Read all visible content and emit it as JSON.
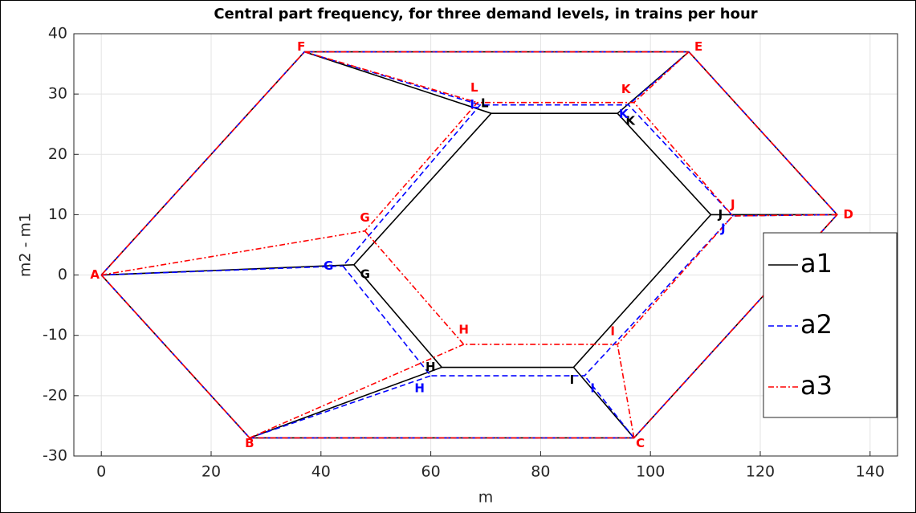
{
  "chart_data": {
    "type": "network",
    "title": "Central part frequency, for three demand levels, in trains per hour",
    "x_label": "m",
    "y_label": "m2 - m1",
    "xlim": [
      -5,
      145
    ],
    "ylim": [
      -30,
      40
    ],
    "xticks": [
      0,
      20,
      40,
      60,
      80,
      100,
      120,
      140
    ],
    "yticks": [
      -30,
      -20,
      -10,
      0,
      10,
      20,
      30,
      40
    ],
    "grid": true,
    "legend": "right",
    "terminals": {
      "names": [
        "A",
        "B",
        "C",
        "D",
        "E",
        "F"
      ],
      "x": [
        0,
        27,
        97,
        134,
        107,
        37
      ],
      "values": [
        0,
        -27,
        -27,
        10,
        37,
        37
      ]
    },
    "series": [
      {
        "name": "a1",
        "color": "#000000",
        "line_style": "-",
        "nodes": [
          "G",
          "H",
          "I",
          "J",
          "K",
          "L"
        ],
        "x": [
          46,
          62,
          86,
          111,
          94,
          71
        ],
        "values": [
          1.7,
          -15.3,
          -15.3,
          10,
          26.8,
          26.8
        ]
      },
      {
        "name": "a2",
        "color": "#0000ff",
        "line_style": "--",
        "nodes": [
          "G",
          "H",
          "I",
          "J",
          "K",
          "L"
        ],
        "x": [
          44,
          60,
          88,
          115,
          96,
          69
        ],
        "values": [
          1.5,
          -16.7,
          -16.7,
          9.8,
          28.2,
          28.2
        ]
      },
      {
        "name": "a3",
        "color": "#ff0000",
        "line_style": "-.",
        "nodes": [
          "G",
          "H",
          "I",
          "J",
          "K",
          "L"
        ],
        "x": [
          48,
          66,
          94,
          115,
          97,
          68.5
        ],
        "values": [
          7.3,
          -11.5,
          -11.5,
          9.8,
          28.6,
          28.6
        ]
      }
    ]
  }
}
